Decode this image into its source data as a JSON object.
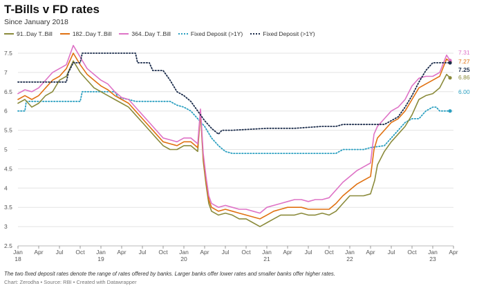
{
  "title": "T-Bills v FD rates",
  "subtitle": "Since January 2018",
  "footnote": "The two fixed deposit rates denote the range of rates offered by banks. Larger banks offer lower rates and smaller banks offer higher rates.",
  "credit": "Chart: Zerodha • Source: RBI • Created with Datawrapper",
  "chart_data": {
    "type": "line",
    "title": "T-Bills v FD rates",
    "subtitle": "Since January 2018",
    "xlabel": "",
    "ylabel": "",
    "ylim": [
      2.5,
      7.5
    ],
    "xlim": [
      0,
      63
    ],
    "x_unit": "months since January 2018",
    "grid": true,
    "legend_position": "top-left",
    "yticks": [
      "2.5",
      "3",
      "3.5",
      "4",
      "4.5",
      "5",
      "5.5",
      "6",
      "6.5",
      "7",
      "7.5"
    ],
    "xticks": [
      {
        "x": 0,
        "label": "Jan",
        "year": "18"
      },
      {
        "x": 3,
        "label": "Apr",
        "year": ""
      },
      {
        "x": 6,
        "label": "Jul",
        "year": ""
      },
      {
        "x": 9,
        "label": "Oct",
        "year": ""
      },
      {
        "x": 12,
        "label": "Jan",
        "year": "19"
      },
      {
        "x": 15,
        "label": "Apr",
        "year": ""
      },
      {
        "x": 18,
        "label": "Jul",
        "year": ""
      },
      {
        "x": 21,
        "label": "Oct",
        "year": ""
      },
      {
        "x": 24,
        "label": "Jan",
        "year": "20"
      },
      {
        "x": 27,
        "label": "Apr",
        "year": ""
      },
      {
        "x": 30,
        "label": "Jul",
        "year": ""
      },
      {
        "x": 33,
        "label": "Oct",
        "year": ""
      },
      {
        "x": 36,
        "label": "Jan",
        "year": "21"
      },
      {
        "x": 39,
        "label": "Apr",
        "year": ""
      },
      {
        "x": 42,
        "label": "Jul",
        "year": ""
      },
      {
        "x": 45,
        "label": "Oct",
        "year": ""
      },
      {
        "x": 48,
        "label": "Jan",
        "year": "22"
      },
      {
        "x": 51,
        "label": "Apr",
        "year": ""
      },
      {
        "x": 54,
        "label": "Jul",
        "year": ""
      },
      {
        "x": 57,
        "label": "Oct",
        "year": ""
      },
      {
        "x": 60,
        "label": "Jan",
        "year": "23"
      },
      {
        "x": 63,
        "label": "Apr",
        "year": ""
      }
    ],
    "series": [
      {
        "name": "91..Day T..Bill",
        "color": "#8a8a3a",
        "style": "solid",
        "end_label": "6.86",
        "points": [
          [
            0,
            6.2
          ],
          [
            1,
            6.3
          ],
          [
            2,
            6.1
          ],
          [
            3,
            6.2
          ],
          [
            4,
            6.4
          ],
          [
            5,
            6.5
          ],
          [
            6,
            6.8
          ],
          [
            7,
            6.9
          ],
          [
            8,
            7.3
          ],
          [
            9,
            7.0
          ],
          [
            10,
            6.8
          ],
          [
            11,
            6.6
          ],
          [
            12,
            6.5
          ],
          [
            13,
            6.4
          ],
          [
            14,
            6.3
          ],
          [
            15,
            6.2
          ],
          [
            16,
            6.1
          ],
          [
            17,
            5.9
          ],
          [
            18,
            5.7
          ],
          [
            19,
            5.5
          ],
          [
            20,
            5.3
          ],
          [
            21,
            5.1
          ],
          [
            22,
            5.0
          ],
          [
            23,
            5.0
          ],
          [
            24,
            5.1
          ],
          [
            25,
            5.1
          ],
          [
            26,
            4.95
          ],
          [
            26.4,
            5.95
          ],
          [
            26.8,
            4.7
          ],
          [
            27.2,
            4.1
          ],
          [
            27.6,
            3.6
          ],
          [
            28,
            3.4
          ],
          [
            29,
            3.3
          ],
          [
            30,
            3.35
          ],
          [
            31,
            3.3
          ],
          [
            32,
            3.2
          ],
          [
            33,
            3.2
          ],
          [
            34,
            3.1
          ],
          [
            35,
            3.0
          ],
          [
            36,
            3.1
          ],
          [
            37,
            3.2
          ],
          [
            38,
            3.3
          ],
          [
            39,
            3.3
          ],
          [
            40,
            3.3
          ],
          [
            41,
            3.35
          ],
          [
            42,
            3.3
          ],
          [
            43,
            3.3
          ],
          [
            44,
            3.35
          ],
          [
            45,
            3.3
          ],
          [
            46,
            3.4
          ],
          [
            47,
            3.6
          ],
          [
            48,
            3.8
          ],
          [
            49,
            3.8
          ],
          [
            50,
            3.8
          ],
          [
            51,
            3.85
          ],
          [
            51.6,
            4.2
          ],
          [
            52,
            4.6
          ],
          [
            53,
            4.95
          ],
          [
            54,
            5.2
          ],
          [
            55,
            5.4
          ],
          [
            56,
            5.6
          ],
          [
            57,
            5.9
          ],
          [
            58,
            6.3
          ],
          [
            59,
            6.4
          ],
          [
            60,
            6.45
          ],
          [
            61,
            6.6
          ],
          [
            62,
            6.95
          ],
          [
            62.5,
            6.86
          ]
        ]
      },
      {
        "name": "182..Day T..Bill",
        "color": "#e07010",
        "style": "solid",
        "end_label": "7.27",
        "points": [
          [
            0,
            6.3
          ],
          [
            1,
            6.4
          ],
          [
            2,
            6.3
          ],
          [
            3,
            6.4
          ],
          [
            4,
            6.6
          ],
          [
            5,
            6.8
          ],
          [
            6,
            6.9
          ],
          [
            7,
            7.1
          ],
          [
            8,
            7.5
          ],
          [
            9,
            7.2
          ],
          [
            10,
            6.95
          ],
          [
            11,
            6.8
          ],
          [
            12,
            6.65
          ],
          [
            13,
            6.55
          ],
          [
            14,
            6.4
          ],
          [
            15,
            6.3
          ],
          [
            16,
            6.2
          ],
          [
            17,
            6.0
          ],
          [
            18,
            5.8
          ],
          [
            19,
            5.6
          ],
          [
            20,
            5.4
          ],
          [
            21,
            5.2
          ],
          [
            22,
            5.15
          ],
          [
            23,
            5.1
          ],
          [
            24,
            5.2
          ],
          [
            25,
            5.2
          ],
          [
            26,
            5.05
          ],
          [
            26.4,
            6.0
          ],
          [
            26.8,
            4.8
          ],
          [
            27.2,
            4.2
          ],
          [
            27.6,
            3.7
          ],
          [
            28,
            3.5
          ],
          [
            29,
            3.4
          ],
          [
            30,
            3.45
          ],
          [
            31,
            3.4
          ],
          [
            32,
            3.35
          ],
          [
            33,
            3.3
          ],
          [
            34,
            3.25
          ],
          [
            35,
            3.2
          ],
          [
            36,
            3.3
          ],
          [
            37,
            3.4
          ],
          [
            38,
            3.45
          ],
          [
            39,
            3.5
          ],
          [
            40,
            3.5
          ],
          [
            41,
            3.5
          ],
          [
            42,
            3.45
          ],
          [
            43,
            3.45
          ],
          [
            44,
            3.45
          ],
          [
            45,
            3.45
          ],
          [
            46,
            3.6
          ],
          [
            47,
            3.8
          ],
          [
            48,
            3.95
          ],
          [
            49,
            4.1
          ],
          [
            50,
            4.2
          ],
          [
            51,
            4.3
          ],
          [
            51.5,
            5.0
          ],
          [
            52,
            5.3
          ],
          [
            53,
            5.5
          ],
          [
            54,
            5.7
          ],
          [
            55,
            5.8
          ],
          [
            56,
            6.0
          ],
          [
            57,
            6.3
          ],
          [
            58,
            6.6
          ],
          [
            59,
            6.7
          ],
          [
            60,
            6.8
          ],
          [
            61,
            6.9
          ],
          [
            62,
            7.35
          ],
          [
            62.5,
            7.27
          ]
        ]
      },
      {
        "name": "364..Day T..Bill",
        "color": "#de72c6",
        "style": "solid",
        "end_label": "7.31",
        "points": [
          [
            0,
            6.45
          ],
          [
            1,
            6.55
          ],
          [
            2,
            6.5
          ],
          [
            3,
            6.6
          ],
          [
            4,
            6.8
          ],
          [
            5,
            7.0
          ],
          [
            6,
            7.1
          ],
          [
            7,
            7.2
          ],
          [
            8,
            7.7
          ],
          [
            9,
            7.4
          ],
          [
            10,
            7.1
          ],
          [
            11,
            6.95
          ],
          [
            12,
            6.8
          ],
          [
            13,
            6.7
          ],
          [
            14,
            6.5
          ],
          [
            15,
            6.35
          ],
          [
            16,
            6.3
          ],
          [
            17,
            6.1
          ],
          [
            18,
            5.9
          ],
          [
            19,
            5.7
          ],
          [
            20,
            5.5
          ],
          [
            21,
            5.3
          ],
          [
            22,
            5.25
          ],
          [
            23,
            5.2
          ],
          [
            24,
            5.3
          ],
          [
            25,
            5.3
          ],
          [
            26,
            5.15
          ],
          [
            26.4,
            6.05
          ],
          [
            26.8,
            4.9
          ],
          [
            27.2,
            4.3
          ],
          [
            27.6,
            3.8
          ],
          [
            28,
            3.6
          ],
          [
            29,
            3.5
          ],
          [
            30,
            3.55
          ],
          [
            31,
            3.5
          ],
          [
            32,
            3.45
          ],
          [
            33,
            3.45
          ],
          [
            34,
            3.4
          ],
          [
            35,
            3.35
          ],
          [
            36,
            3.5
          ],
          [
            37,
            3.55
          ],
          [
            38,
            3.6
          ],
          [
            39,
            3.65
          ],
          [
            40,
            3.7
          ],
          [
            41,
            3.7
          ],
          [
            42,
            3.65
          ],
          [
            43,
            3.7
          ],
          [
            44,
            3.7
          ],
          [
            45,
            3.75
          ],
          [
            46,
            3.95
          ],
          [
            47,
            4.15
          ],
          [
            48,
            4.3
          ],
          [
            49,
            4.45
          ],
          [
            50,
            4.55
          ],
          [
            51,
            4.65
          ],
          [
            51.5,
            5.4
          ],
          [
            52,
            5.6
          ],
          [
            53,
            5.8
          ],
          [
            54,
            6.0
          ],
          [
            55,
            6.1
          ],
          [
            56,
            6.3
          ],
          [
            57,
            6.65
          ],
          [
            58,
            6.85
          ],
          [
            59,
            6.9
          ],
          [
            60,
            6.9
          ],
          [
            61,
            7.0
          ],
          [
            62,
            7.45
          ],
          [
            62.5,
            7.31
          ]
        ]
      },
      {
        "name": "Fixed Deposit (>1Y)",
        "color": "#2a9fc0",
        "style": "dotted",
        "end_label": "6.00",
        "points": [
          [
            0,
            6.0
          ],
          [
            1,
            6.0
          ],
          [
            1.2,
            6.25
          ],
          [
            8,
            6.25
          ],
          [
            9,
            6.25
          ],
          [
            9.3,
            6.5
          ],
          [
            14,
            6.5
          ],
          [
            14.5,
            6.35
          ],
          [
            16,
            6.3
          ],
          [
            17,
            6.25
          ],
          [
            18,
            6.25
          ],
          [
            22,
            6.25
          ],
          [
            23,
            6.15
          ],
          [
            24,
            6.1
          ],
          [
            25,
            6.0
          ],
          [
            26,
            5.8
          ],
          [
            27,
            5.6
          ],
          [
            28,
            5.3
          ],
          [
            29,
            5.1
          ],
          [
            30,
            4.95
          ],
          [
            31,
            4.9
          ],
          [
            45,
            4.9
          ],
          [
            46,
            4.9
          ],
          [
            47,
            5.0
          ],
          [
            50,
            5.0
          ],
          [
            51,
            5.05
          ],
          [
            53,
            5.1
          ],
          [
            54,
            5.3
          ],
          [
            55,
            5.5
          ],
          [
            56,
            5.7
          ],
          [
            57,
            5.8
          ],
          [
            58,
            5.8
          ],
          [
            59,
            6.0
          ],
          [
            60,
            6.1
          ],
          [
            60.5,
            6.1
          ],
          [
            61,
            6.0
          ],
          [
            62.5,
            6.0
          ]
        ]
      },
      {
        "name": "Fixed Deposit (>1Y)",
        "color": "#1a2b4a",
        "style": "dotted",
        "end_label": "7.25",
        "points": [
          [
            0,
            6.75
          ],
          [
            3,
            6.75
          ],
          [
            6,
            6.75
          ],
          [
            7,
            6.75
          ],
          [
            7.3,
            7.0
          ],
          [
            8,
            7.25
          ],
          [
            9,
            7.25
          ],
          [
            9.3,
            7.5
          ],
          [
            16,
            7.5
          ],
          [
            17,
            7.5
          ],
          [
            17.3,
            7.25
          ],
          [
            19,
            7.25
          ],
          [
            19.5,
            7.05
          ],
          [
            21,
            7.05
          ],
          [
            22,
            6.8
          ],
          [
            23,
            6.5
          ],
          [
            24,
            6.4
          ],
          [
            25,
            6.25
          ],
          [
            26,
            6.0
          ],
          [
            27,
            5.75
          ],
          [
            28,
            5.55
          ],
          [
            29,
            5.4
          ],
          [
            29.5,
            5.5
          ],
          [
            31,
            5.5
          ],
          [
            36,
            5.55
          ],
          [
            40,
            5.55
          ],
          [
            44,
            5.6
          ],
          [
            46,
            5.6
          ],
          [
            47,
            5.65
          ],
          [
            53,
            5.65
          ],
          [
            54,
            5.75
          ],
          [
            55,
            5.85
          ],
          [
            56,
            6.1
          ],
          [
            57,
            6.4
          ],
          [
            58,
            6.75
          ],
          [
            59,
            7.05
          ],
          [
            60,
            7.25
          ],
          [
            61,
            7.25
          ],
          [
            62.5,
            7.25
          ]
        ]
      }
    ]
  }
}
